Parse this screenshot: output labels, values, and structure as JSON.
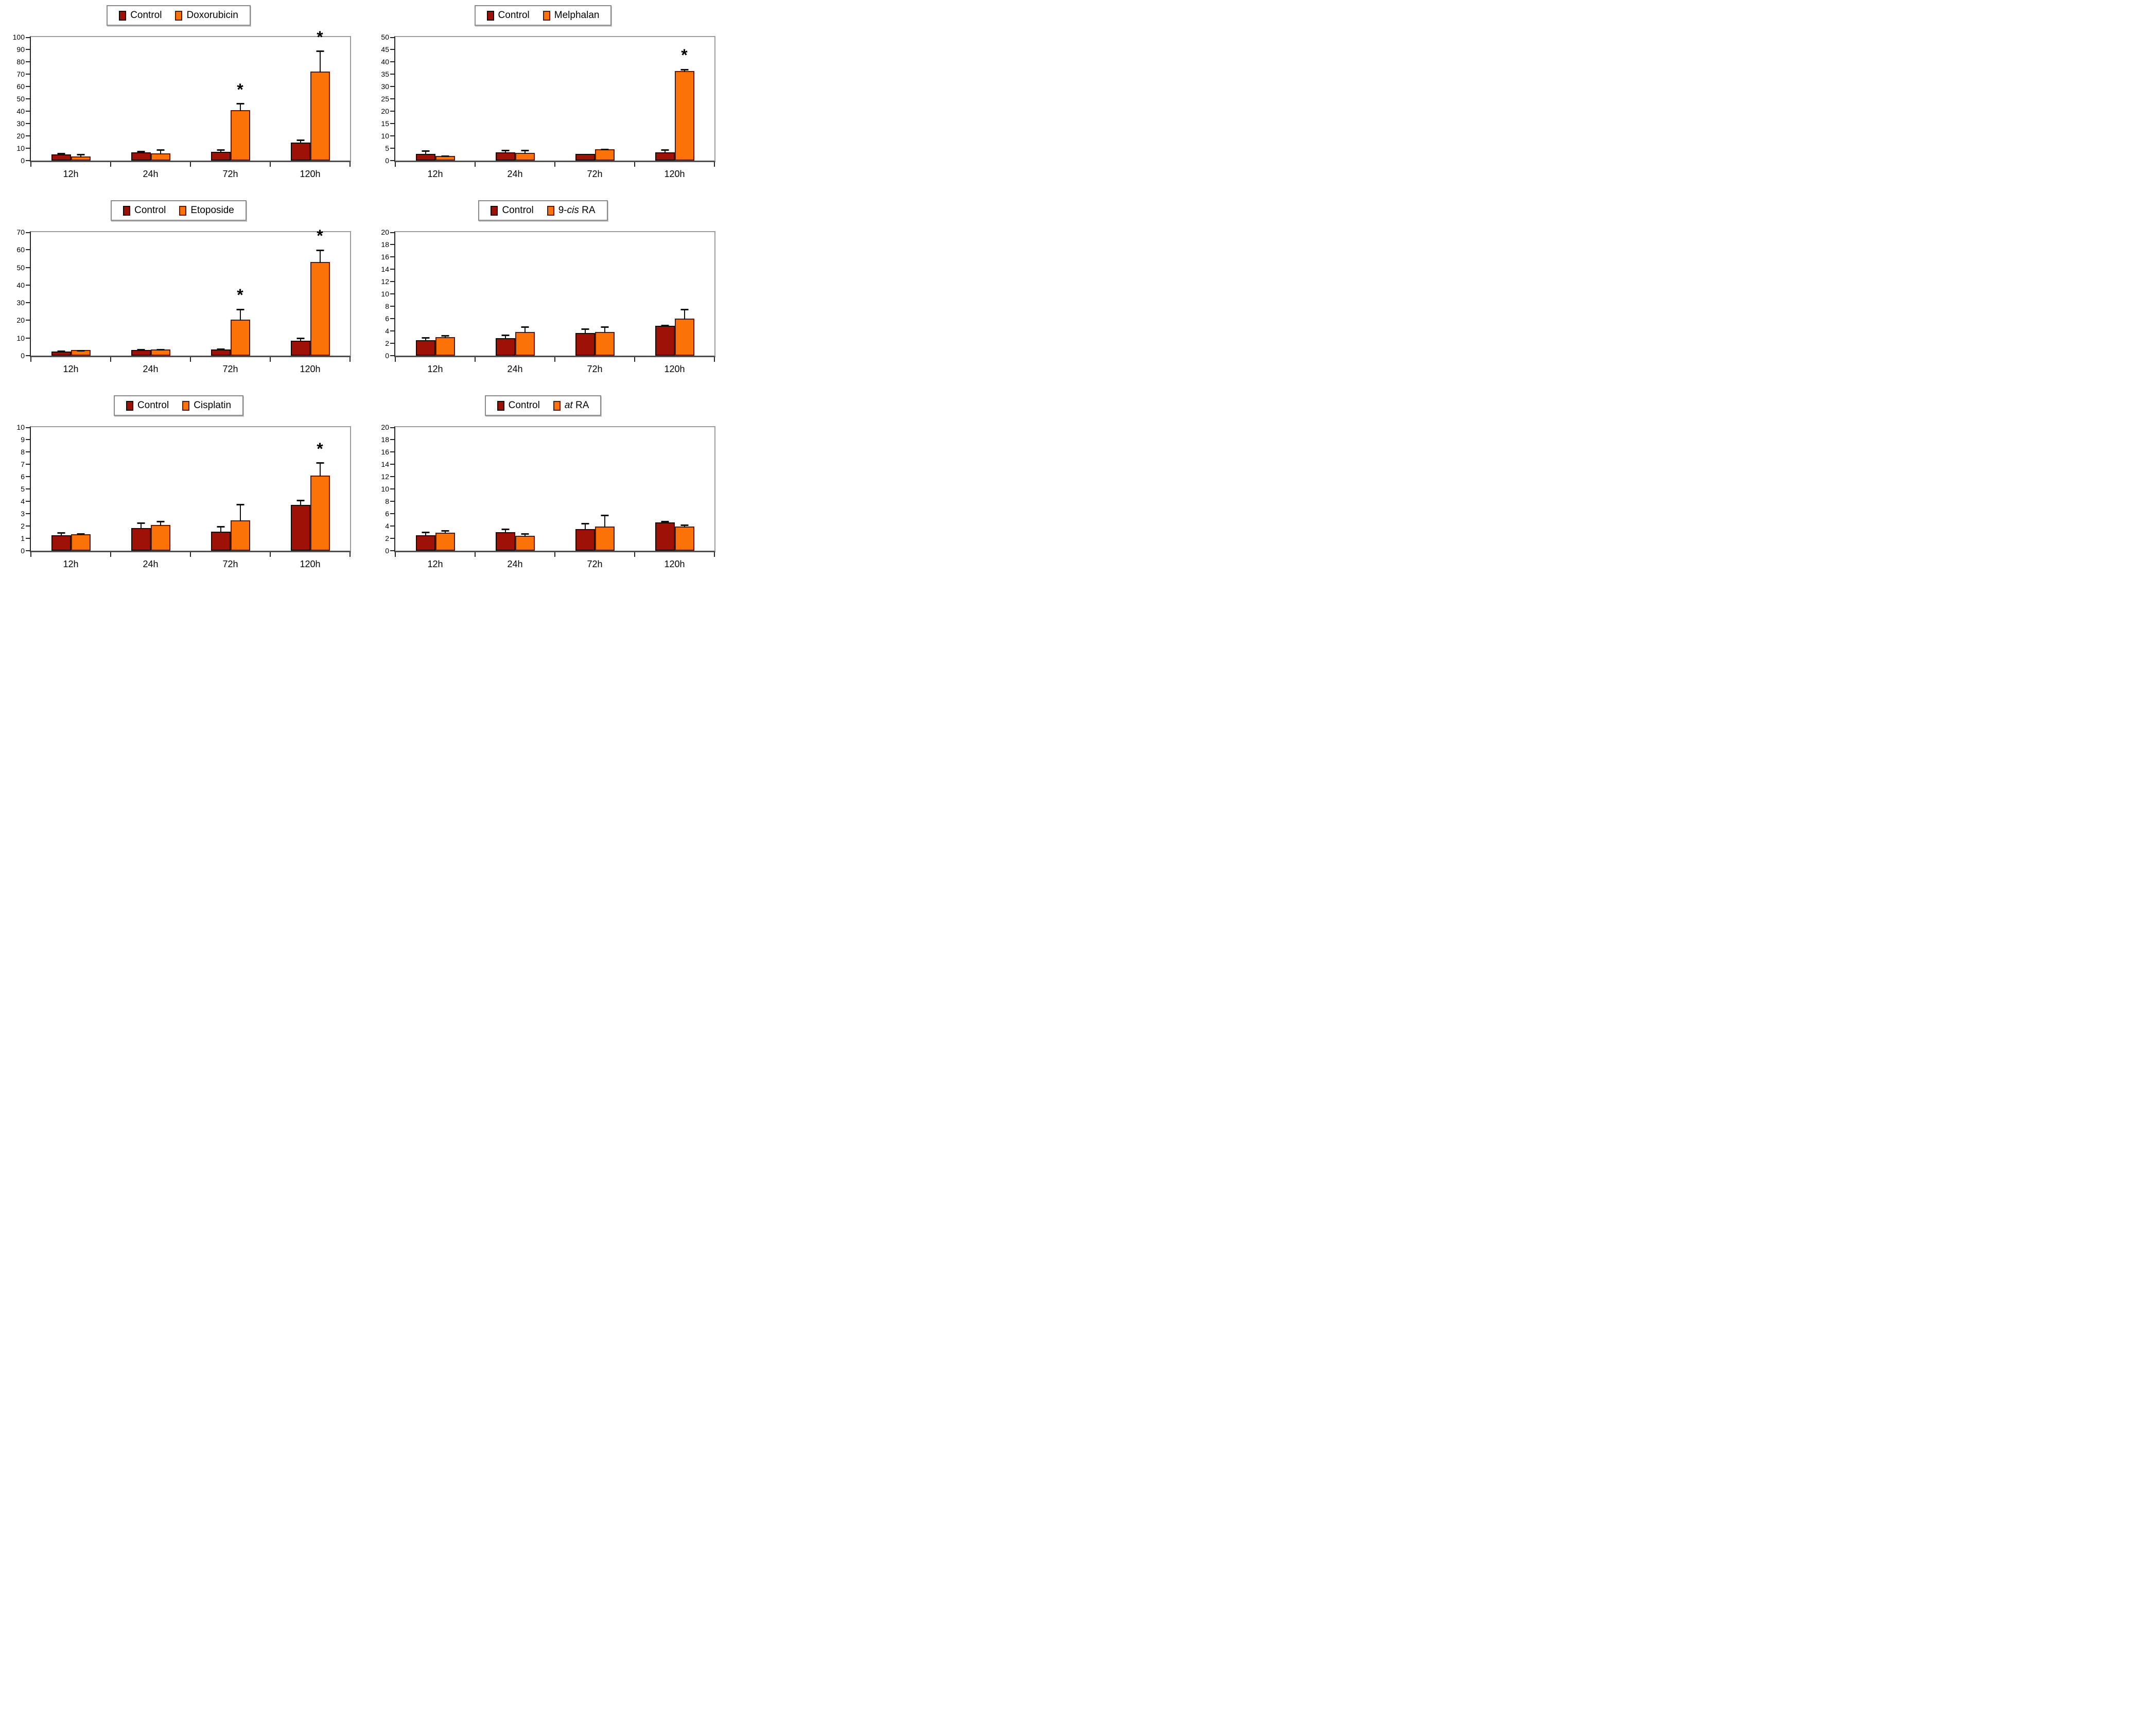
{
  "figure": {
    "background": "#ffffff",
    "sig_marker": "*",
    "categories": [
      "12h",
      "24h",
      "72h",
      "120h"
    ]
  },
  "colors": {
    "control_fill": "#9E1106",
    "control_border": "#1d0502",
    "treatment_fill": "#FA7208",
    "treatment_border": "#5a1a05",
    "axis": "#262626",
    "frame": "#9c9c9c",
    "baseline": "#4f4f4f",
    "error": "#111111"
  },
  "chart_data": [
    {
      "id": "doxorubicin",
      "panel": "top-left",
      "type": "bar",
      "legend": {
        "control": "Control",
        "treatment_parts": [
          {
            "text": "Doxorubicin",
            "italic": false
          }
        ]
      },
      "categories": [
        "12h",
        "24h",
        "72h",
        "120h"
      ],
      "ylim": [
        0,
        100
      ],
      "ytick_step": 10,
      "grid": false,
      "legend_position": "top-center",
      "series": [
        {
          "name": "Control",
          "values": [
            5,
            6.5,
            7,
            14.5
          ],
          "errors": [
            1.5,
            1.7,
            2.5,
            3
          ],
          "sig": [
            false,
            false,
            false,
            false
          ]
        },
        {
          "name": "Doxorubicin",
          "values": [
            3.5,
            6,
            41,
            72
          ],
          "errors": [
            2.5,
            3.5,
            6,
            17.5
          ],
          "sig": [
            false,
            false,
            true,
            true
          ]
        }
      ]
    },
    {
      "id": "melphalan",
      "panel": "top-right",
      "type": "bar",
      "legend": {
        "control": "Control",
        "treatment_parts": [
          {
            "text": "Melphalan",
            "italic": false
          }
        ]
      },
      "categories": [
        "12h",
        "24h",
        "72h",
        "120h"
      ],
      "ylim": [
        0,
        50
      ],
      "ytick_step": 5,
      "grid": false,
      "legend_position": "top-center",
      "series": [
        {
          "name": "Control",
          "values": [
            2.8,
            3.3,
            2.8,
            3.3
          ],
          "errors": [
            1.5,
            1.2,
            0,
            1.4
          ],
          "sig": [
            false,
            false,
            false,
            false
          ]
        },
        {
          "name": "Melphalan",
          "values": [
            1.9,
            3.2,
            4.6,
            36.3
          ],
          "errors": [
            0.5,
            1.3,
            0.4,
            1
          ],
          "sig": [
            false,
            false,
            false,
            true
          ]
        }
      ]
    },
    {
      "id": "etoposide",
      "panel": "middle-left",
      "type": "bar",
      "legend": {
        "control": "Control",
        "treatment_parts": [
          {
            "text": "Etoposide",
            "italic": false
          }
        ]
      },
      "categories": [
        "12h",
        "24h",
        "72h",
        "120h"
      ],
      "ylim": [
        0,
        70
      ],
      "ytick_step": 10,
      "grid": false,
      "legend_position": "top-center",
      "series": [
        {
          "name": "Control",
          "values": [
            2.3,
            3.2,
            3.6,
            8.5
          ],
          "errors": [
            0.8,
            0.8,
            0.8,
            2
          ],
          "sig": [
            false,
            false,
            false,
            false
          ]
        },
        {
          "name": "Etoposide",
          "values": [
            3.1,
            3.5,
            20.4,
            53
          ],
          "errors": [
            0.4,
            0.5,
            6.5,
            7.5
          ],
          "sig": [
            false,
            false,
            true,
            true
          ]
        }
      ]
    },
    {
      "id": "9-cis-ra",
      "panel": "middle-right",
      "type": "bar",
      "legend": {
        "control": "Control",
        "treatment_parts": [
          {
            "text": "9-",
            "italic": false
          },
          {
            "text": "cis",
            "italic": true
          },
          {
            "text": " RA",
            "italic": false
          }
        ]
      },
      "categories": [
        "12h",
        "24h",
        "72h",
        "120h"
      ],
      "ylim": [
        0,
        20
      ],
      "ytick_step": 2,
      "grid": false,
      "legend_position": "top-center",
      "series": [
        {
          "name": "Control",
          "values": [
            2.5,
            2.8,
            3.7,
            4.8
          ],
          "errors": [
            0.6,
            0.7,
            0.8,
            0.3
          ],
          "sig": [
            false,
            false,
            false,
            false
          ]
        },
        {
          "name": "9-cis RA",
          "values": [
            3.0,
            3.8,
            3.8,
            6.0
          ],
          "errors": [
            0.4,
            1.0,
            1.0,
            1.7
          ],
          "sig": [
            false,
            false,
            false,
            false
          ]
        }
      ]
    },
    {
      "id": "cisplatin",
      "panel": "bottom-left",
      "type": "bar",
      "legend": {
        "control": "Control",
        "treatment_parts": [
          {
            "text": "Cisplatin",
            "italic": false
          }
        ]
      },
      "categories": [
        "12h",
        "24h",
        "72h",
        "120h"
      ],
      "ylim": [
        0,
        10
      ],
      "ytick_step": 1,
      "grid": false,
      "legend_position": "top-center",
      "series": [
        {
          "name": "Control",
          "values": [
            1.25,
            1.85,
            1.55,
            3.7
          ],
          "errors": [
            0.3,
            0.5,
            0.5,
            0.45
          ],
          "sig": [
            false,
            false,
            false,
            false
          ]
        },
        {
          "name": "Cisplatin",
          "values": [
            1.35,
            2.1,
            2.45,
            6.1
          ],
          "errors": [
            0.1,
            0.35,
            1.4,
            1.1
          ],
          "sig": [
            false,
            false,
            false,
            true
          ]
        }
      ]
    },
    {
      "id": "at-ra",
      "panel": "bottom-right",
      "type": "bar",
      "legend": {
        "control": "Control",
        "treatment_parts": [
          {
            "text": "at",
            "italic": true
          },
          {
            "text": " RA",
            "italic": false
          }
        ]
      },
      "categories": [
        "12h",
        "24h",
        "72h",
        "120h"
      ],
      "ylim": [
        0,
        20
      ],
      "ytick_step": 2,
      "grid": false,
      "legend_position": "top-center",
      "series": [
        {
          "name": "Control",
          "values": [
            2.5,
            3.0,
            3.5,
            4.6
          ],
          "errors": [
            0.65,
            0.65,
            1.1,
            0.3
          ],
          "sig": [
            false,
            false,
            false,
            false
          ]
        },
        {
          "name": "at RA",
          "values": [
            2.9,
            2.4,
            3.9,
            3.9
          ],
          "errors": [
            0.5,
            0.5,
            2.0,
            0.4
          ],
          "sig": [
            false,
            false,
            false,
            false
          ]
        }
      ]
    }
  ]
}
